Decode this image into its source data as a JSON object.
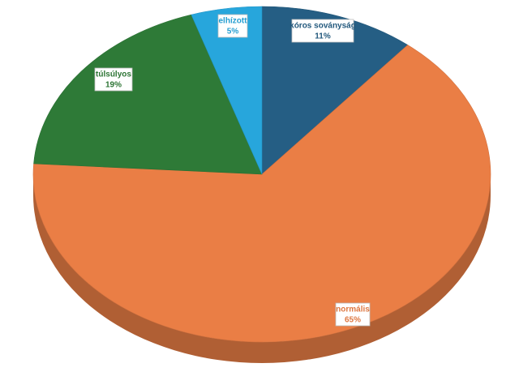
{
  "chart_data": {
    "type": "pie",
    "categories": [
      "kóros soványság",
      "normális",
      "túlsúlyos",
      "elhízott"
    ],
    "values": [
      11,
      65,
      19,
      5
    ],
    "value_labels": [
      "11%",
      "65%",
      "19%",
      "5%"
    ],
    "colors": [
      "#255e84",
      "#ea7e45",
      "#2e7a37",
      "#27a6dc"
    ]
  }
}
